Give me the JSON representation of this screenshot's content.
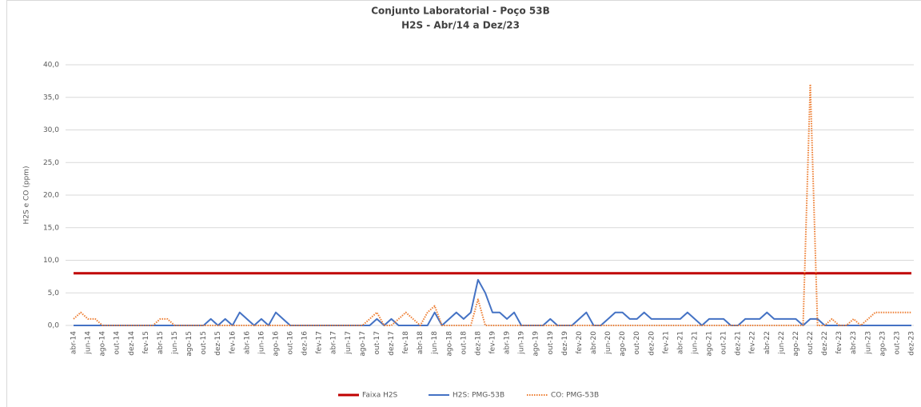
{
  "chart_data": {
    "type": "line",
    "title": "Conjunto Laboratorial - Poço 53B",
    "subtitle": "H2S - Abr/14 a Dez/23",
    "y_label": "H2S e CO (ppm)",
    "categories": [
      "abr-14",
      null,
      "jun-14",
      null,
      "ago-14",
      null,
      "out-14",
      null,
      "dez-14",
      null,
      "fev-15",
      null,
      "abr-15",
      null,
      "jun-15",
      null,
      "ago-15",
      null,
      "out-15",
      null,
      "dez-15",
      null,
      "fev-16",
      null,
      "abr-16",
      null,
      "jun-16",
      null,
      "ago-16",
      null,
      "out-16",
      null,
      "dez-16",
      null,
      "fev-17",
      null,
      "abr-17",
      null,
      "jun-17",
      null,
      "ago-17",
      null,
      "out-17",
      null,
      "dez-17",
      null,
      "fev-18",
      null,
      "abr-18",
      null,
      "jun-18",
      null,
      "ago-18",
      null,
      "out-18",
      null,
      "dez-18",
      null,
      "fev-19",
      null,
      "abr-19",
      null,
      "jun-19",
      null,
      "ago-19",
      null,
      "out-19",
      null,
      "dez-19",
      null,
      "fev-20",
      null,
      "abr-20",
      null,
      "jun-20",
      null,
      "ago-20",
      null,
      "out-20",
      null,
      "dez-20",
      null,
      "fev-21",
      null,
      "abr-21",
      null,
      "jun-21",
      null,
      "ago-21",
      null,
      "out-21",
      null,
      "dez-21",
      null,
      "fev-22",
      null,
      "abr-22",
      null,
      "jun-22",
      null,
      "ago-22",
      null,
      "out-22",
      null,
      "dez-22",
      null,
      "fev-23",
      null,
      "abr-23",
      null,
      "jun-23",
      null,
      "ago-23",
      null,
      "out-23",
      null,
      "dez-23"
    ],
    "series": [
      {
        "name": "Faixa H2S",
        "color": "#c00000",
        "style": "solid",
        "width": 3,
        "values": [
          8,
          8,
          8,
          8,
          8,
          8,
          8,
          8,
          8,
          8,
          8,
          8,
          8,
          8,
          8,
          8,
          8,
          8,
          8,
          8,
          8,
          8,
          8,
          8,
          8,
          8,
          8,
          8,
          8,
          8,
          8,
          8,
          8,
          8,
          8,
          8,
          8,
          8,
          8,
          8,
          8,
          8,
          8,
          8,
          8,
          8,
          8,
          8,
          8,
          8,
          8,
          8,
          8,
          8,
          8,
          8,
          8,
          8,
          8,
          8,
          8,
          8,
          8,
          8,
          8,
          8,
          8,
          8,
          8,
          8,
          8,
          8,
          8,
          8,
          8,
          8,
          8,
          8,
          8,
          8,
          8,
          8,
          8,
          8,
          8,
          8,
          8,
          8,
          8,
          8,
          8,
          8,
          8,
          8,
          8,
          8,
          8,
          8,
          8,
          8,
          8,
          8,
          8,
          8,
          8,
          8,
          8,
          8,
          8,
          8,
          8,
          8,
          8,
          8,
          8,
          8,
          8
        ]
      },
      {
        "name": "H2S: PMG-53B",
        "color": "#4472c4",
        "style": "solid",
        "width": 2,
        "values": [
          0,
          0,
          0,
          0,
          0,
          0,
          0,
          0,
          0,
          0,
          0,
          0,
          0,
          0,
          0,
          0,
          0,
          0,
          0,
          1,
          0,
          1,
          0,
          2,
          1,
          0,
          1,
          0,
          2,
          1,
          0,
          0,
          0,
          0,
          0,
          0,
          0,
          0,
          0,
          0,
          0,
          0,
          1,
          0,
          1,
          0,
          0,
          0,
          0,
          0,
          2,
          0,
          1,
          2,
          1,
          2,
          7,
          5,
          2,
          2,
          1,
          2,
          0,
          0,
          0,
          0,
          1,
          0,
          0,
          0,
          1,
          2,
          0,
          0,
          1,
          2,
          2,
          1,
          1,
          2,
          1,
          1,
          1,
          1,
          1,
          2,
          1,
          0,
          1,
          1,
          1,
          0,
          0,
          1,
          1,
          1,
          2,
          1,
          1,
          1,
          1,
          0,
          1,
          1,
          0,
          0,
          0,
          0,
          0,
          0,
          0,
          0,
          0,
          0,
          0,
          0,
          0
        ]
      },
      {
        "name": "CO: PMG-53B",
        "color": "#ed7d31",
        "style": "dotted",
        "width": 2,
        "values": [
          1,
          2,
          1,
          1,
          0,
          0,
          0,
          0,
          0,
          0,
          0,
          0,
          1,
          1,
          0,
          0,
          0,
          0,
          0,
          0,
          0,
          0,
          0,
          0,
          0,
          0,
          0,
          0,
          0,
          0,
          0,
          0,
          0,
          0,
          0,
          0,
          0,
          0,
          0,
          0,
          0,
          1,
          2,
          0,
          0,
          1,
          2,
          1,
          0,
          2,
          3,
          0,
          0,
          0,
          0,
          0,
          4,
          0,
          0,
          0,
          0,
          0,
          0,
          0,
          0,
          0,
          0,
          0,
          0,
          0,
          0,
          0,
          0,
          0,
          0,
          0,
          0,
          0,
          0,
          0,
          0,
          0,
          0,
          0,
          0,
          0,
          0,
          0,
          0,
          0,
          0,
          0,
          0,
          0,
          0,
          0,
          0,
          0,
          0,
          0,
          0,
          0,
          37,
          0,
          0,
          1,
          0,
          0,
          1,
          0,
          1,
          2,
          2,
          2,
          2,
          2,
          2
        ]
      }
    ],
    "ylim": [
      0,
      40
    ],
    "yticks": [
      {
        "value": 0,
        "label": "0,0"
      },
      {
        "value": 5,
        "label": "5,0"
      },
      {
        "value": 10,
        "label": "10,0"
      },
      {
        "value": 15,
        "label": "15,0"
      },
      {
        "value": 20,
        "label": "20,0"
      },
      {
        "value": 25,
        "label": "25,0"
      },
      {
        "value": 30,
        "label": "30,0"
      },
      {
        "value": 35,
        "label": "35,0"
      },
      {
        "value": 40,
        "label": "40,0"
      }
    ],
    "grid": true,
    "legend": "bottom"
  }
}
